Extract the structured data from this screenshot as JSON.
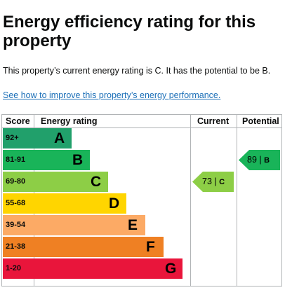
{
  "page": {
    "title": "Energy efficiency rating for this property",
    "summary": "This property’s current energy rating is C. It has the potential to be B.",
    "link": "See how to improve this property’s energy performance."
  },
  "table": {
    "headers": {
      "score": "Score",
      "rating": "Energy rating",
      "current": "Current",
      "potential": "Potential"
    },
    "bands": [
      {
        "score": "92+",
        "letter": "A",
        "color": "#21a06b"
      },
      {
        "score": "81-91",
        "letter": "B",
        "color": "#19b459"
      },
      {
        "score": "69-80",
        "letter": "C",
        "color": "#8dce46"
      },
      {
        "score": "55-68",
        "letter": "D",
        "color": "#ffd500"
      },
      {
        "score": "39-54",
        "letter": "E",
        "color": "#fcaa65"
      },
      {
        "score": "21-38",
        "letter": "F",
        "color": "#ef8023"
      },
      {
        "score": "1-20",
        "letter": "G",
        "color": "#e9153b"
      }
    ],
    "current": {
      "value": "73",
      "separator": "|",
      "letter": "C",
      "color": "#8dce46"
    },
    "potential": {
      "value": "89",
      "separator": "|",
      "letter": "B",
      "color": "#19b459"
    }
  }
}
